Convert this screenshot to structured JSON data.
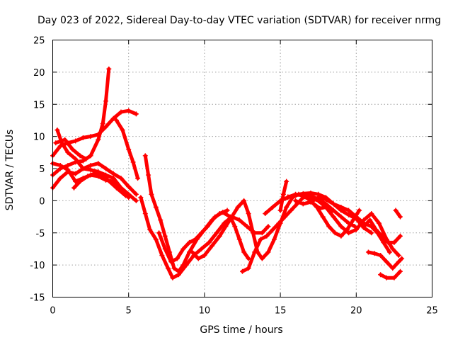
{
  "chart_data": {
    "type": "scatter",
    "title": "Day 023 of 2022, Sidereal Day-to-day VTEC variation (SDTVAR) for receiver nrmg",
    "xlabel": "GPS time / hours",
    "ylabel": "SDTVAR / TECUs",
    "xlim": [
      0,
      25
    ],
    "ylim": [
      -15,
      25
    ],
    "x_ticks": [
      0,
      5,
      10,
      15,
      20,
      25
    ],
    "y_ticks": [
      -15,
      -10,
      -5,
      0,
      5,
      10,
      15,
      20,
      25
    ],
    "grid": true,
    "marker": "plus",
    "color": "#ff0000",
    "series": [
      {
        "points": [
          [
            0.0,
            7.0
          ],
          [
            0.5,
            8.5
          ],
          [
            1.0,
            9.0
          ],
          [
            1.5,
            9.3
          ],
          [
            2.0,
            9.8
          ],
          [
            2.5,
            10.0
          ],
          [
            3.0,
            10.3
          ],
          [
            3.5,
            11.5
          ],
          [
            4.0,
            12.8
          ],
          [
            4.5,
            13.8
          ],
          [
            5.0,
            14.0
          ],
          [
            5.5,
            13.5
          ]
        ]
      },
      {
        "points": [
          [
            0.3,
            11.0
          ],
          [
            0.6,
            9.0
          ],
          [
            1.0,
            7.5
          ],
          [
            1.5,
            6.5
          ],
          [
            2.0,
            5.0
          ],
          [
            2.5,
            4.8
          ],
          [
            3.0,
            4.5
          ],
          [
            3.5,
            4.0
          ],
          [
            4.0,
            3.5
          ],
          [
            4.5,
            2.0
          ],
          [
            5.0,
            1.0
          ],
          [
            5.5,
            0.0
          ]
        ]
      },
      {
        "points": [
          [
            0.0,
            4.0
          ],
          [
            0.5,
            5.0
          ],
          [
            1.0,
            5.5
          ],
          [
            1.5,
            6.0
          ],
          [
            2.0,
            6.2
          ],
          [
            2.5,
            7.0
          ],
          [
            3.0,
            9.5
          ],
          [
            3.3,
            12.0
          ],
          [
            3.5,
            15.5
          ],
          [
            3.7,
            20.5
          ]
        ]
      },
      {
        "points": [
          [
            0.0,
            2.0
          ],
          [
            0.5,
            3.5
          ],
          [
            1.0,
            4.5
          ],
          [
            1.5,
            4.2
          ],
          [
            2.0,
            5.0
          ],
          [
            2.5,
            5.5
          ],
          [
            3.0,
            5.8
          ],
          [
            3.5,
            5.0
          ],
          [
            4.0,
            4.2
          ],
          [
            4.5,
            3.5
          ],
          [
            5.0,
            2.2
          ],
          [
            5.5,
            1.0
          ]
        ]
      },
      {
        "points": [
          [
            0.0,
            5.8
          ],
          [
            0.5,
            5.5
          ],
          [
            1.0,
            4.8
          ],
          [
            1.5,
            3.0
          ],
          [
            2.0,
            3.5
          ],
          [
            2.5,
            4.0
          ],
          [
            3.0,
            3.8
          ],
          [
            3.5,
            3.2
          ],
          [
            4.0,
            3.0
          ],
          [
            4.5,
            1.8
          ],
          [
            5.0,
            0.5
          ]
        ]
      },
      {
        "points": [
          [
            0.2,
            9.0
          ],
          [
            0.8,
            9.5
          ],
          [
            1.3,
            8.0
          ],
          [
            1.8,
            7.0
          ],
          [
            2.2,
            6.5
          ]
        ]
      },
      {
        "points": [
          [
            4.2,
            12.5
          ],
          [
            4.6,
            11.0
          ],
          [
            5.0,
            8.0
          ],
          [
            5.3,
            6.0
          ],
          [
            5.6,
            3.5
          ]
        ]
      },
      {
        "points": [
          [
            1.4,
            2.0
          ],
          [
            1.8,
            3.0
          ],
          [
            2.3,
            3.8
          ],
          [
            2.8,
            4.3
          ],
          [
            3.5,
            3.5
          ],
          [
            4.2,
            2.0
          ],
          [
            4.8,
            0.8
          ]
        ]
      },
      {
        "points": [
          [
            6.1,
            7.0
          ],
          [
            6.3,
            4.0
          ],
          [
            6.5,
            1.0
          ],
          [
            6.8,
            -1.0
          ],
          [
            7.1,
            -3.0
          ],
          [
            7.4,
            -5.5
          ],
          [
            7.7,
            -8.0
          ],
          [
            8.0,
            -10.5
          ],
          [
            8.3,
            -11.0
          ],
          [
            8.6,
            -10.0
          ],
          [
            9.0,
            -8.0
          ],
          [
            9.5,
            -6.0
          ],
          [
            10.0,
            -4.5
          ],
          [
            10.5,
            -3.0
          ],
          [
            11.0,
            -2.0
          ],
          [
            11.5,
            -1.5
          ]
        ]
      },
      {
        "points": [
          [
            5.8,
            0.5
          ],
          [
            6.1,
            -2.0
          ],
          [
            6.4,
            -4.5
          ],
          [
            6.8,
            -6.0
          ],
          [
            7.2,
            -8.5
          ],
          [
            7.6,
            -10.5
          ],
          [
            7.9,
            -12.0
          ],
          [
            8.3,
            -11.5
          ],
          [
            8.8,
            -10.0
          ],
          [
            9.3,
            -8.5
          ],
          [
            9.8,
            -7.5
          ],
          [
            10.3,
            -6.5
          ],
          [
            10.8,
            -5.0
          ],
          [
            11.3,
            -3.5
          ],
          [
            11.8,
            -2.5
          ],
          [
            12.3,
            -3.0
          ],
          [
            12.8,
            -4.0
          ],
          [
            13.3,
            -5.0
          ],
          [
            13.8,
            -5.0
          ],
          [
            14.2,
            -4.0
          ]
        ]
      },
      {
        "points": [
          [
            7.0,
            -5.0
          ],
          [
            7.4,
            -7.5
          ],
          [
            7.8,
            -9.5
          ],
          [
            8.2,
            -9.0
          ],
          [
            8.6,
            -7.5
          ],
          [
            9.0,
            -6.5
          ],
          [
            9.4,
            -6.0
          ],
          [
            9.8,
            -5.0
          ],
          [
            10.2,
            -4.0
          ],
          [
            10.7,
            -2.5
          ],
          [
            11.2,
            -1.8
          ],
          [
            11.7,
            -2.5
          ],
          [
            12.0,
            -4.0
          ],
          [
            12.3,
            -6.0
          ],
          [
            12.6,
            -8.0
          ],
          [
            12.9,
            -9.0
          ]
        ]
      },
      {
        "points": [
          [
            9.2,
            -8.0
          ],
          [
            9.6,
            -9.0
          ],
          [
            10.0,
            -8.5
          ],
          [
            10.5,
            -7.0
          ],
          [
            11.0,
            -5.5
          ],
          [
            11.4,
            -4.0
          ],
          [
            11.8,
            -2.5
          ],
          [
            12.2,
            -1.0
          ],
          [
            12.6,
            0.0
          ],
          [
            12.9,
            -2.0
          ],
          [
            13.2,
            -5.0
          ],
          [
            13.5,
            -8.0
          ],
          [
            13.8,
            -9.0
          ],
          [
            14.2,
            -8.0
          ],
          [
            14.6,
            -6.0
          ],
          [
            15.0,
            -3.5
          ],
          [
            15.4,
            -1.0
          ],
          [
            15.8,
            0.5
          ],
          [
            16.2,
            1.0
          ],
          [
            16.6,
            1.0
          ],
          [
            17.0,
            0.8
          ],
          [
            17.5,
            0.2
          ],
          [
            18.0,
            -0.5
          ],
          [
            18.5,
            -1.5
          ],
          [
            19.0,
            -2.5
          ],
          [
            19.5,
            -3.5
          ],
          [
            19.9,
            -4.0
          ]
        ]
      },
      {
        "points": [
          [
            12.5,
            -11.0
          ],
          [
            12.9,
            -10.5
          ],
          [
            13.3,
            -8.0
          ],
          [
            13.7,
            -6.0
          ],
          [
            14.1,
            -5.5
          ],
          [
            14.5,
            -4.5
          ],
          [
            14.9,
            -3.5
          ],
          [
            15.3,
            -2.5
          ],
          [
            15.7,
            -1.5
          ],
          [
            16.1,
            -0.5
          ],
          [
            16.5,
            0.5
          ],
          [
            17.0,
            0.5
          ],
          [
            17.5,
            0.0
          ],
          [
            18.0,
            -1.0
          ],
          [
            18.5,
            -2.5
          ],
          [
            19.0,
            -4.0
          ],
          [
            19.5,
            -5.0
          ],
          [
            20.0,
            -4.5
          ],
          [
            20.5,
            -3.0
          ],
          [
            21.0,
            -2.0
          ],
          [
            21.5,
            -3.5
          ],
          [
            22.0,
            -6.0
          ],
          [
            22.4,
            -7.5
          ],
          [
            22.8,
            -8.5
          ]
        ]
      },
      {
        "points": [
          [
            15.0,
            -1.5
          ],
          [
            15.2,
            1.0
          ],
          [
            15.4,
            3.0
          ]
        ]
      },
      {
        "points": [
          [
            14.0,
            -2.0
          ],
          [
            14.5,
            -1.0
          ],
          [
            15.0,
            0.0
          ],
          [
            15.5,
            0.5
          ],
          [
            16.0,
            1.0
          ],
          [
            16.5,
            0.8
          ],
          [
            17.0,
            0.0
          ],
          [
            17.4,
            -1.0
          ],
          [
            17.8,
            -2.5
          ],
          [
            18.2,
            -4.0
          ],
          [
            18.6,
            -5.0
          ],
          [
            19.0,
            -5.5
          ],
          [
            19.4,
            -4.5
          ],
          [
            19.8,
            -3.0
          ],
          [
            20.2,
            -1.5
          ]
        ]
      },
      {
        "points": [
          [
            16.0,
            0.0
          ],
          [
            16.5,
            -0.5
          ],
          [
            17.0,
            -0.2
          ],
          [
            17.5,
            0.5
          ],
          [
            18.0,
            0.2
          ],
          [
            18.5,
            -0.5
          ],
          [
            19.0,
            -1.0
          ],
          [
            19.5,
            -1.5
          ],
          [
            20.0,
            -2.5
          ],
          [
            20.5,
            -3.5
          ],
          [
            21.0,
            -4.0
          ],
          [
            21.4,
            -5.0
          ],
          [
            21.8,
            -6.5
          ],
          [
            22.2,
            -8.0
          ]
        ]
      },
      {
        "points": [
          [
            20.8,
            -8.0
          ],
          [
            21.2,
            -8.2
          ],
          [
            21.6,
            -8.5
          ],
          [
            22.0,
            -9.5
          ],
          [
            22.4,
            -10.5
          ],
          [
            22.8,
            -9.5
          ],
          [
            23.0,
            -9.0
          ]
        ]
      },
      {
        "points": [
          [
            21.6,
            -11.5
          ],
          [
            22.0,
            -12.0
          ],
          [
            22.5,
            -12.0
          ],
          [
            22.9,
            -11.0
          ]
        ]
      },
      {
        "points": [
          [
            20.5,
            -4.0
          ],
          [
            20.9,
            -3.0
          ],
          [
            21.3,
            -4.5
          ],
          [
            21.7,
            -5.5
          ],
          [
            22.1,
            -6.5
          ],
          [
            22.5,
            -6.5
          ],
          [
            22.9,
            -5.5
          ]
        ]
      },
      {
        "points": [
          [
            22.6,
            -1.5
          ],
          [
            22.9,
            -2.5
          ]
        ]
      },
      {
        "points": [
          [
            17.2,
            -0.5
          ],
          [
            17.6,
            -1.2
          ],
          [
            18.0,
            -1.0
          ],
          [
            18.4,
            -1.6
          ]
        ]
      },
      {
        "points": [
          [
            15.5,
            0.6
          ],
          [
            16.0,
            0.9
          ],
          [
            16.5,
            1.1
          ],
          [
            17.0,
            1.2
          ],
          [
            17.5,
            1.0
          ],
          [
            18.0,
            0.5
          ],
          [
            18.5,
            -0.5
          ],
          [
            19.0,
            -1.5
          ],
          [
            19.5,
            -2.2
          ],
          [
            20.0,
            -2.8
          ],
          [
            20.5,
            -4.2
          ],
          [
            21.0,
            -5.0
          ]
        ]
      }
    ]
  }
}
